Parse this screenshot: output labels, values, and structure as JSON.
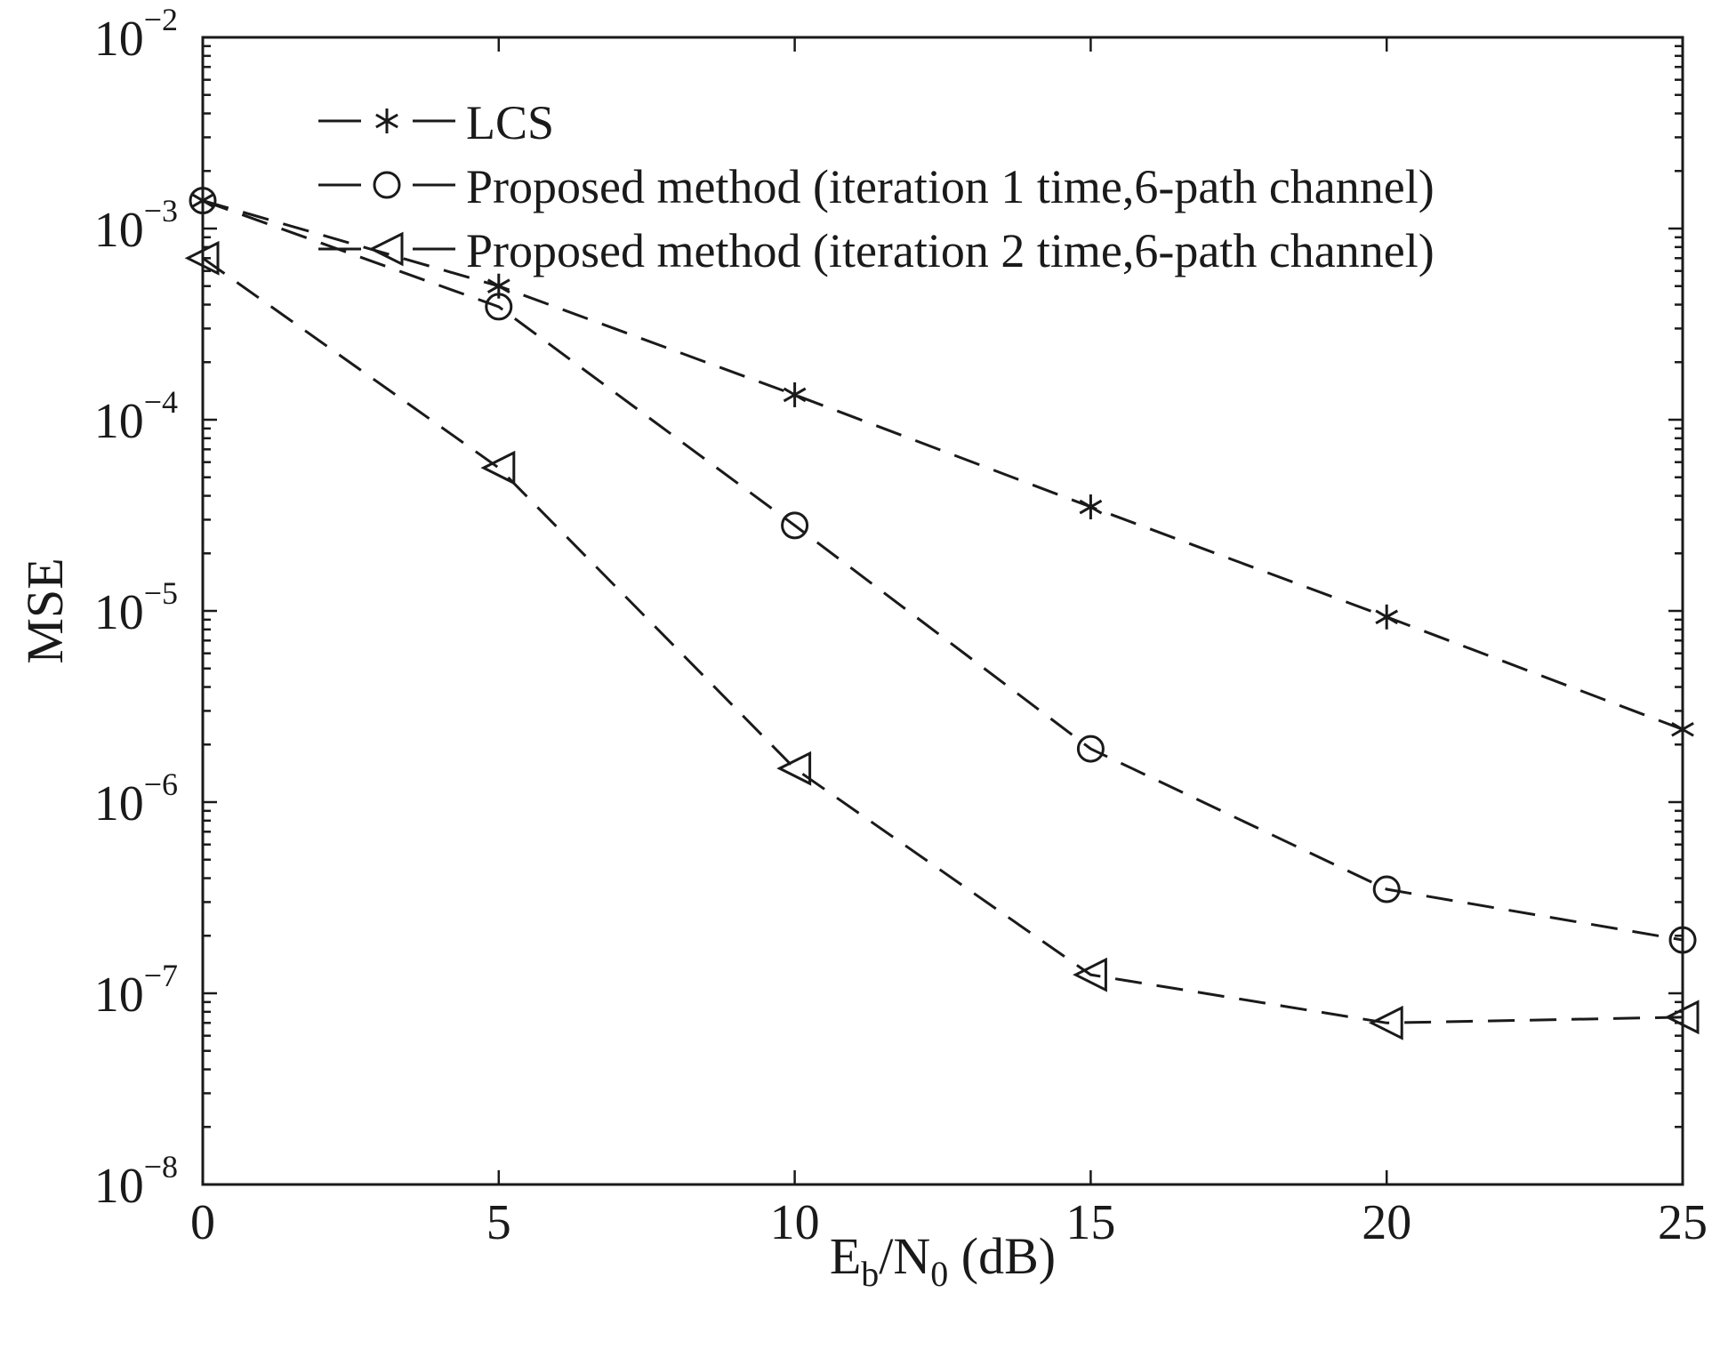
{
  "chart_data": {
    "type": "line",
    "xlabel": {
      "main": "E",
      "sub1": "b",
      "mid": "/N",
      "sub2": "0",
      "tail": " (dB)"
    },
    "ylabel": "MSE",
    "xlim": [
      0,
      25
    ],
    "ylim": [
      1e-08,
      0.01
    ],
    "yscale": "log",
    "grid": false,
    "legend_position": "top-left",
    "x_ticks": [
      "0",
      "5",
      "10",
      "15",
      "20",
      "25"
    ],
    "y_ticks": [
      {
        "base": "10",
        "exp": "−8"
      },
      {
        "base": "10",
        "exp": "−7"
      },
      {
        "base": "10",
        "exp": "−6"
      },
      {
        "base": "10",
        "exp": "−5"
      },
      {
        "base": "10",
        "exp": "−4"
      },
      {
        "base": "10",
        "exp": "−3"
      },
      {
        "base": "10",
        "exp": "−2"
      }
    ],
    "x": [
      0,
      5,
      10,
      15,
      20,
      25
    ],
    "series": [
      {
        "name": "LCS",
        "marker": "asterisk",
        "values": [
          0.0014,
          0.0005,
          0.000135,
          3.5e-05,
          9.3e-06,
          2.4e-06
        ]
      },
      {
        "name": "Proposed method (iteration 1 time,6-path channel)",
        "marker": "circle",
        "values": [
          0.0014,
          0.00039,
          2.8e-05,
          1.9e-06,
          3.5e-07,
          1.9e-07
        ]
      },
      {
        "name": "Proposed method (iteration 2 time,6-path channel)",
        "marker": "triangle-left",
        "values": [
          0.0007,
          5.6e-05,
          1.5e-06,
          1.25e-07,
          7e-08,
          7.5e-08
        ]
      }
    ]
  }
}
